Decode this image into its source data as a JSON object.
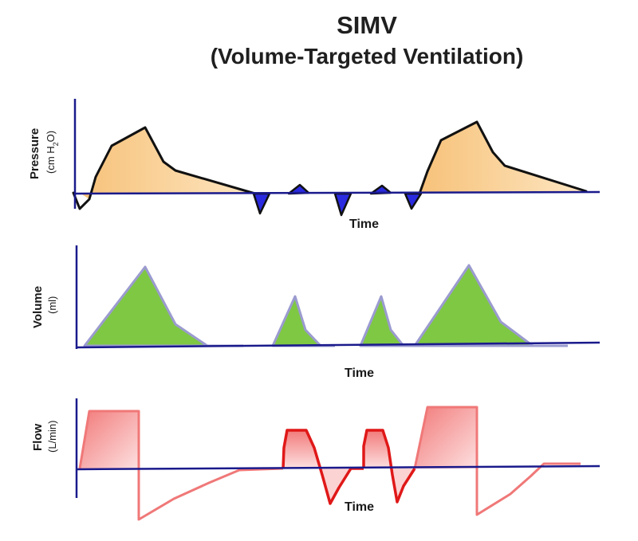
{
  "title": "SIMV",
  "subtitle": "(Volume-Targeted Ventilation)",
  "panels": {
    "pressure": {
      "label": "Pressure",
      "unit_prefix": "(cm H",
      "unit_sub": "2",
      "unit_suffix": "O)",
      "xlabel": "Time"
    },
    "volume": {
      "label": "Volume",
      "unit": "(ml)",
      "xlabel": "Time"
    },
    "flow": {
      "label": "Flow",
      "unit": "(L/min)",
      "xlabel": "Time"
    }
  },
  "colors": {
    "axis": "#1a1a8c",
    "pressure_line": "#111111",
    "pressure_fill": "#f7c77b",
    "pressure_dip": "#2a2ae0",
    "volume_fill": "#7fc843",
    "volume_line": "#9b9bd0",
    "flow_line": "#e21b1b",
    "flow_line_light": "#f08080",
    "flow_fill": "#f58b8b"
  }
}
